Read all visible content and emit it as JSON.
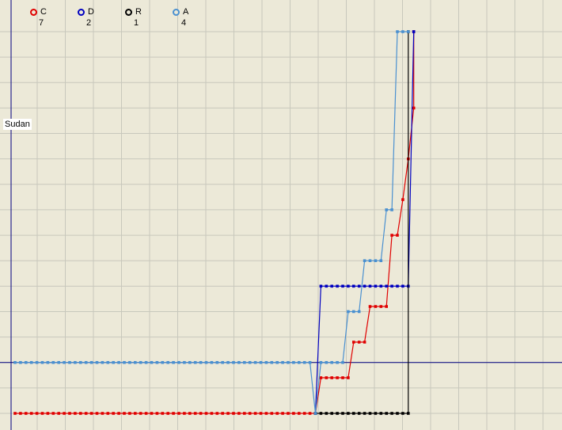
{
  "region_label": "Sudan",
  "chart_data": {
    "type": "line",
    "step": true,
    "grid": true,
    "legend_placement": "top-left",
    "xlim": [
      0,
      70
    ],
    "ylim": [
      0,
      7.5
    ],
    "x_grid_step": 5,
    "y_grid_step": 0.5,
    "reference_line_y": 1,
    "series": [
      {
        "name": "C",
        "count": "7",
        "color": "#e00000",
        "points": [
          [
            0,
            0
          ],
          [
            1,
            0
          ],
          [
            2,
            0
          ],
          [
            3,
            0
          ],
          [
            4,
            0
          ],
          [
            5,
            0
          ],
          [
            6,
            0
          ],
          [
            7,
            0
          ],
          [
            8,
            0
          ],
          [
            9,
            0
          ],
          [
            10,
            0
          ],
          [
            11,
            0
          ],
          [
            12,
            0
          ],
          [
            13,
            0
          ],
          [
            14,
            0
          ],
          [
            15,
            0
          ],
          [
            16,
            0
          ],
          [
            17,
            0
          ],
          [
            18,
            0
          ],
          [
            19,
            0
          ],
          [
            20,
            0
          ],
          [
            21,
            0
          ],
          [
            22,
            0
          ],
          [
            23,
            0
          ],
          [
            24,
            0
          ],
          [
            25,
            0
          ],
          [
            26,
            0
          ],
          [
            27,
            0
          ],
          [
            28,
            0
          ],
          [
            29,
            0
          ],
          [
            30,
            0
          ],
          [
            31,
            0
          ],
          [
            32,
            0
          ],
          [
            33,
            0
          ],
          [
            34,
            0
          ],
          [
            35,
            0
          ],
          [
            36,
            0
          ],
          [
            37,
            0
          ],
          [
            38,
            0
          ],
          [
            39,
            0
          ],
          [
            40,
            0
          ],
          [
            41,
            0
          ],
          [
            42,
            0
          ],
          [
            43,
            0
          ],
          [
            44,
            0
          ],
          [
            45,
            0
          ],
          [
            46,
            0
          ],
          [
            47,
            0
          ],
          [
            48,
            0
          ],
          [
            49,
            0
          ],
          [
            50,
            0
          ],
          [
            51,
            0
          ],
          [
            52,
            0
          ],
          [
            53,
            0
          ],
          [
            54,
            0
          ],
          [
            55,
            0
          ],
          [
            55,
            0
          ],
          [
            56,
            0.7
          ],
          [
            57,
            0.7
          ],
          [
            58,
            0.7
          ],
          [
            59,
            0.7
          ],
          [
            60,
            0.7
          ],
          [
            61,
            0.7
          ],
          [
            62,
            1.4
          ],
          [
            63,
            1.4
          ],
          [
            64,
            1.4
          ],
          [
            65,
            2.1
          ],
          [
            66,
            2.1
          ],
          [
            67,
            2.1
          ],
          [
            68,
            2.1
          ],
          [
            69,
            3.5
          ],
          [
            70,
            3.5
          ],
          [
            71,
            4.2
          ],
          [
            72,
            5.0
          ],
          [
            73,
            6.0
          ],
          [
            73,
            7.5
          ]
        ]
      },
      {
        "name": "D",
        "count": "2",
        "color": "#0000c0",
        "points": [
          [
            55,
            0
          ],
          [
            56,
            2.5
          ],
          [
            57,
            2.5
          ],
          [
            58,
            2.5
          ],
          [
            59,
            2.5
          ],
          [
            60,
            2.5
          ],
          [
            61,
            2.5
          ],
          [
            62,
            2.5
          ],
          [
            63,
            2.5
          ],
          [
            64,
            2.5
          ],
          [
            65,
            2.5
          ],
          [
            66,
            2.5
          ],
          [
            67,
            2.5
          ],
          [
            68,
            2.5
          ],
          [
            69,
            2.5
          ],
          [
            70,
            2.5
          ],
          [
            71,
            2.5
          ],
          [
            72,
            2.5
          ],
          [
            73,
            7.5
          ]
        ]
      },
      {
        "name": "R",
        "count": "1",
        "color": "#000000",
        "points": [
          [
            55,
            0
          ],
          [
            56,
            0
          ],
          [
            57,
            0
          ],
          [
            58,
            0
          ],
          [
            59,
            0
          ],
          [
            60,
            0
          ],
          [
            61,
            0
          ],
          [
            62,
            0
          ],
          [
            63,
            0
          ],
          [
            64,
            0
          ],
          [
            65,
            0
          ],
          [
            66,
            0
          ],
          [
            67,
            0
          ],
          [
            68,
            0
          ],
          [
            69,
            0
          ],
          [
            70,
            0
          ],
          [
            71,
            0
          ],
          [
            72,
            0
          ],
          [
            72,
            7.5
          ]
        ]
      },
      {
        "name": "A",
        "count": "4",
        "color": "#4a90d0",
        "points": [
          [
            0,
            1
          ],
          [
            1,
            1
          ],
          [
            2,
            1
          ],
          [
            3,
            1
          ],
          [
            4,
            1
          ],
          [
            5,
            1
          ],
          [
            6,
            1
          ],
          [
            7,
            1
          ],
          [
            8,
            1
          ],
          [
            9,
            1
          ],
          [
            10,
            1
          ],
          [
            11,
            1
          ],
          [
            12,
            1
          ],
          [
            13,
            1
          ],
          [
            14,
            1
          ],
          [
            15,
            1
          ],
          [
            16,
            1
          ],
          [
            17,
            1
          ],
          [
            18,
            1
          ],
          [
            19,
            1
          ],
          [
            20,
            1
          ],
          [
            21,
            1
          ],
          [
            22,
            1
          ],
          [
            23,
            1
          ],
          [
            24,
            1
          ],
          [
            25,
            1
          ],
          [
            26,
            1
          ],
          [
            27,
            1
          ],
          [
            28,
            1
          ],
          [
            29,
            1
          ],
          [
            30,
            1
          ],
          [
            31,
            1
          ],
          [
            32,
            1
          ],
          [
            33,
            1
          ],
          [
            34,
            1
          ],
          [
            35,
            1
          ],
          [
            36,
            1
          ],
          [
            37,
            1
          ],
          [
            38,
            1
          ],
          [
            39,
            1
          ],
          [
            40,
            1
          ],
          [
            41,
            1
          ],
          [
            42,
            1
          ],
          [
            43,
            1
          ],
          [
            44,
            1
          ],
          [
            45,
            1
          ],
          [
            46,
            1
          ],
          [
            47,
            1
          ],
          [
            48,
            1
          ],
          [
            49,
            1
          ],
          [
            50,
            1
          ],
          [
            51,
            1
          ],
          [
            52,
            1
          ],
          [
            53,
            1
          ],
          [
            54,
            1
          ],
          [
            55,
            0
          ],
          [
            56,
            1
          ],
          [
            57,
            1
          ],
          [
            58,
            1
          ],
          [
            59,
            1
          ],
          [
            60,
            1
          ],
          [
            61,
            2
          ],
          [
            62,
            2
          ],
          [
            63,
            2
          ],
          [
            64,
            3
          ],
          [
            65,
            3
          ],
          [
            66,
            3
          ],
          [
            67,
            3
          ],
          [
            68,
            4
          ],
          [
            69,
            4
          ],
          [
            70,
            7.5
          ],
          [
            71,
            7.5
          ],
          [
            72,
            7.5
          ]
        ]
      }
    ]
  }
}
